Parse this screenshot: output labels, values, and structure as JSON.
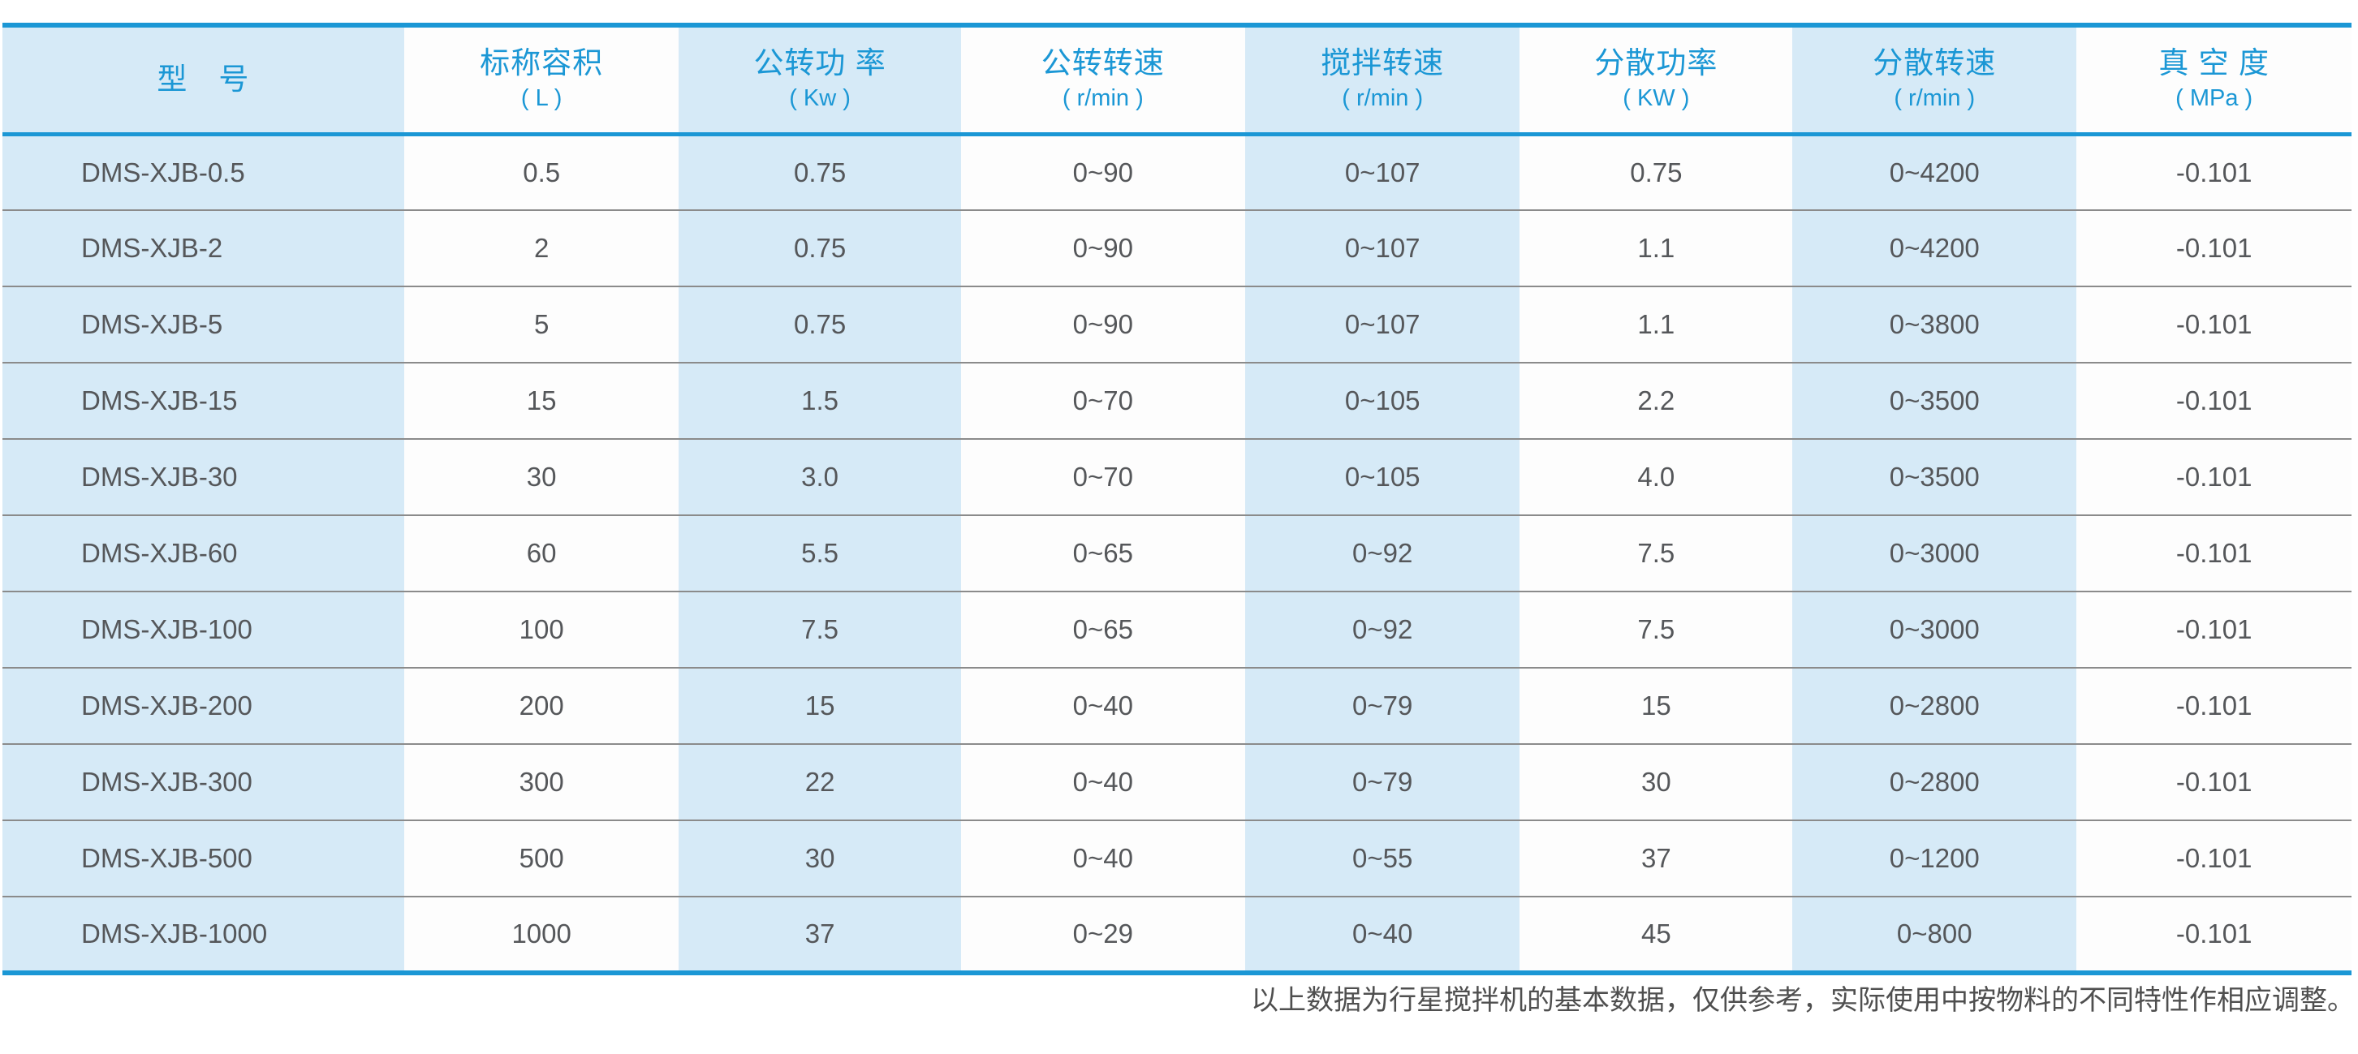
{
  "colors": {
    "accent_blue": "#1b97d5",
    "stripe_blue": "#d6eaf7",
    "white_column": "#fdfdfd",
    "cell_text": "#55575a",
    "row_separator": "#8b8b8b",
    "note_text": "#4f4f4f"
  },
  "chart_data": {
    "type": "table",
    "title": "",
    "columns": [
      {
        "title": "型　号",
        "unit": ""
      },
      {
        "title": "标称容积",
        "unit": "( L )"
      },
      {
        "title": "公转功 率",
        "unit": "( Kw )"
      },
      {
        "title": "公转转速",
        "unit": "( r/min )"
      },
      {
        "title": "搅拌转速",
        "unit": "( r/min )"
      },
      {
        "title": "分散功率",
        "unit": "( KW )"
      },
      {
        "title": "分散转速",
        "unit": "( r/min )"
      },
      {
        "title": "真 空 度",
        "unit": "( MPa )"
      }
    ],
    "rows": [
      [
        "DMS-XJB-0.5",
        "0.5",
        "0.75",
        "0~90",
        "0~107",
        "0.75",
        "0~4200",
        "-0.101"
      ],
      [
        "DMS-XJB-2",
        "2",
        "0.75",
        "0~90",
        "0~107",
        "1.1",
        "0~4200",
        "-0.101"
      ],
      [
        "DMS-XJB-5",
        "5",
        "0.75",
        "0~90",
        "0~107",
        "1.1",
        "0~3800",
        "-0.101"
      ],
      [
        "DMS-XJB-15",
        "15",
        "1.5",
        "0~70",
        "0~105",
        "2.2",
        "0~3500",
        "-0.101"
      ],
      [
        "DMS-XJB-30",
        "30",
        "3.0",
        "0~70",
        "0~105",
        "4.0",
        "0~3500",
        "-0.101"
      ],
      [
        "DMS-XJB-60",
        "60",
        "5.5",
        "0~65",
        "0~92",
        "7.5",
        "0~3000",
        "-0.101"
      ],
      [
        "DMS-XJB-100",
        "100",
        "7.5",
        "0~65",
        "0~92",
        "7.5",
        "0~3000",
        "-0.101"
      ],
      [
        "DMS-XJB-200",
        "200",
        "15",
        "0~40",
        "0~79",
        "15",
        "0~2800",
        "-0.101"
      ],
      [
        "DMS-XJB-300",
        "300",
        "22",
        "0~40",
        "0~79",
        "30",
        "0~2800",
        "-0.101"
      ],
      [
        "DMS-XJB-500",
        "500",
        "30",
        "0~40",
        "0~55",
        "37",
        "0~1200",
        "-0.101"
      ],
      [
        "DMS-XJB-1000",
        "1000",
        "37",
        "0~29",
        "0~40",
        "45",
        "0~800",
        "-0.101"
      ]
    ]
  },
  "footer": {
    "note": "以上数据为行星搅拌机的基本数据，仅供参考，实际使用中按物料的不同特性作相应调整。"
  }
}
